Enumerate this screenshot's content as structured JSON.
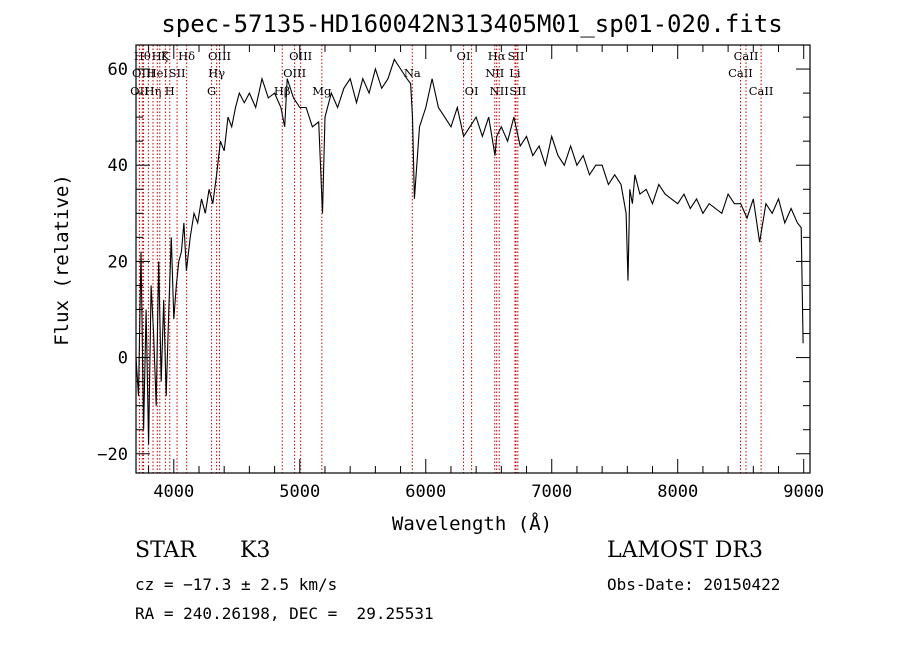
{
  "chart_data": {
    "type": "line",
    "title": "spec-57135-HD160042N313405M01_sp01-020.fits",
    "xlabel": "Wavelength (Å)",
    "ylabel": "Flux (relative)",
    "xlim": [
      3700,
      9050
    ],
    "ylim": [
      -24,
      65
    ],
    "xticks": [
      4000,
      5000,
      6000,
      7000,
      8000,
      9000
    ],
    "yticks": [
      -20,
      0,
      20,
      40,
      60
    ],
    "line_color": "#000000",
    "marker_color": "#cc0000",
    "series": [
      {
        "x": [
          3700,
          3720,
          3740,
          3760,
          3780,
          3800,
          3820,
          3840,
          3860,
          3880,
          3900,
          3920,
          3940,
          3960,
          3980,
          4000,
          4020,
          4040,
          4060,
          4080,
          4100,
          4130,
          4160,
          4190,
          4220,
          4250,
          4280,
          4310,
          4340,
          4370,
          4400,
          4430,
          4460,
          4490,
          4520,
          4560,
          4600,
          4650,
          4700,
          4750,
          4800,
          4850,
          4880,
          4900,
          4950,
          5000,
          5050,
          5100,
          5150,
          5180,
          5200,
          5250,
          5300,
          5350,
          5400,
          5450,
          5500,
          5550,
          5600,
          5650,
          5700,
          5750,
          5800,
          5850,
          5880,
          5895,
          5910,
          5950,
          6000,
          6050,
          6100,
          6150,
          6200,
          6250,
          6300,
          6350,
          6400,
          6450,
          6500,
          6550,
          6563,
          6600,
          6650,
          6700,
          6750,
          6800,
          6850,
          6900,
          6950,
          7000,
          7050,
          7100,
          7150,
          7200,
          7250,
          7300,
          7350,
          7400,
          7450,
          7500,
          7550,
          7590,
          7605,
          7620,
          7640,
          7660,
          7700,
          7750,
          7800,
          7850,
          7900,
          7950,
          8000,
          8050,
          8100,
          8150,
          8200,
          8250,
          8300,
          8350,
          8400,
          8450,
          8500,
          8550,
          8600,
          8650,
          8700,
          8750,
          8800,
          8850,
          8900,
          8950,
          8980,
          8995
        ],
        "y": [
          0,
          -8,
          22,
          -15,
          10,
          -18,
          15,
          5,
          -10,
          20,
          -5,
          12,
          -8,
          10,
          25,
          8,
          15,
          20,
          22,
          28,
          18,
          25,
          30,
          28,
          33,
          30,
          35,
          32,
          38,
          45,
          43,
          50,
          48,
          52,
          55,
          53,
          55,
          52,
          58,
          54,
          55,
          52,
          48,
          58,
          54,
          52,
          52,
          48,
          49,
          30,
          50,
          55,
          52,
          56,
          58,
          53,
          58,
          55,
          60,
          56,
          58,
          62,
          60,
          58,
          57,
          50,
          33,
          48,
          52,
          58,
          52,
          50,
          48,
          52,
          46,
          48,
          50,
          46,
          50,
          42,
          46,
          48,
          45,
          50,
          44,
          46,
          42,
          44,
          40,
          46,
          42,
          40,
          44,
          40,
          42,
          38,
          40,
          40,
          36,
          38,
          36,
          30,
          16,
          35,
          32,
          38,
          34,
          35,
          32,
          36,
          34,
          33,
          32,
          34,
          31,
          33,
          30,
          32,
          31,
          30,
          34,
          32,
          32,
          29,
          33,
          24,
          32,
          30,
          33,
          28,
          31,
          28,
          27,
          3
        ]
      }
    ],
    "line_markers": [
      {
        "x": 3727,
        "label": "OII",
        "row": 2
      },
      {
        "x": 3750,
        "label": "Hθ",
        "row": 0
      },
      {
        "x": 3760,
        "label": "OIII",
        "row": 1
      },
      {
        "x": 3798,
        "label": "",
        "row": 0
      },
      {
        "x": 3835,
        "label": "Hη",
        "row": 2
      },
      {
        "x": 3869,
        "label": "HeI",
        "row": 1
      },
      {
        "x": 3889,
        "label": "Hζ",
        "row": 0
      },
      {
        "x": 3933,
        "label": "K",
        "row": 0
      },
      {
        "x": 3968,
        "label": "H",
        "row": 2
      },
      {
        "x": 4026,
        "label": "SII",
        "row": 1
      },
      {
        "x": 4102,
        "label": "Hδ",
        "row": 0
      },
      {
        "x": 4300,
        "label": "G",
        "row": 2
      },
      {
        "x": 4340,
        "label": "Hγ",
        "row": 1
      },
      {
        "x": 4363,
        "label": "OIII",
        "row": 0
      },
      {
        "x": 4861,
        "label": "Hβ",
        "row": 2
      },
      {
        "x": 4959,
        "label": "OIII",
        "row": 1
      },
      {
        "x": 5007,
        "label": "OIII",
        "row": 0
      },
      {
        "x": 5175,
        "label": "Mg",
        "row": 2
      },
      {
        "x": 5893,
        "label": "Na",
        "row": 1
      },
      {
        "x": 6300,
        "label": "OI",
        "row": 0
      },
      {
        "x": 6364,
        "label": "OI",
        "row": 2
      },
      {
        "x": 6548,
        "label": "NII",
        "row": 1
      },
      {
        "x": 6563,
        "label": "Hα",
        "row": 0
      },
      {
        "x": 6583,
        "label": "NII",
        "row": 2
      },
      {
        "x": 6708,
        "label": "Li",
        "row": 1
      },
      {
        "x": 6716,
        "label": "SII",
        "row": 0
      },
      {
        "x": 6731,
        "label": "SII",
        "row": 2
      },
      {
        "x": 8498,
        "label": "CaII",
        "row": 1
      },
      {
        "x": 8542,
        "label": "CaII",
        "row": 0
      },
      {
        "x": 8662,
        "label": "CaII",
        "row": 2
      }
    ]
  },
  "info": {
    "class_label": "STAR",
    "subclass": "K3",
    "survey": "LAMOST DR3",
    "redshift": "cz = −17.3 ± 2.5 km/s",
    "obs_date": "Obs-Date: 20150422",
    "coords": "RA = 240.26198, DEC =  29.25531"
  }
}
